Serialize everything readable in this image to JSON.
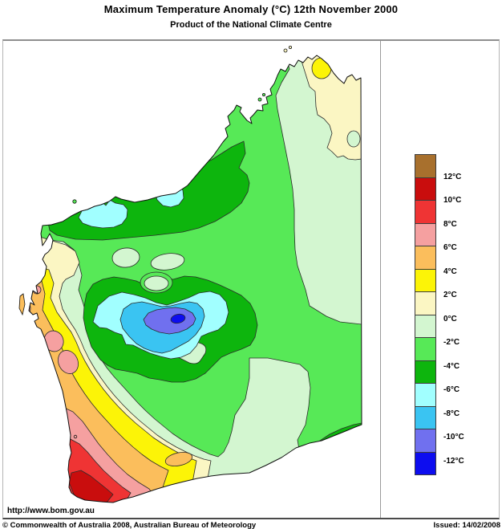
{
  "page": {
    "title": "Maximum Temperature Anomaly (°C)  12th November 2000",
    "subtitle": "Product of the National Climate Centre"
  },
  "footer": {
    "url": "http://www.bom.gov.au",
    "copyright": "© Commonwealth of Australia 2008, Australian Bureau of Meteorology",
    "issued": "Issued: 14/02/2008"
  },
  "palette": {
    "brown": "#A8702D",
    "red_dark": "#C90D0D",
    "red": "#EF3434",
    "pink": "#F5A0A0",
    "orange": "#FBBE5C",
    "yellow": "#FCF407",
    "cream": "#FBF6C3",
    "green_pale": "#D3F6D0",
    "green_mid": "#57E957",
    "green_dark": "#0DB50D",
    "cyan_light": "#A1FFFF",
    "cyan": "#3AC4F2",
    "periwinkle": "#7070EF",
    "blue": "#0D0DEF"
  },
  "legend": {
    "unit": "°C",
    "items": [
      {
        "key": "brown",
        "label": "12°C"
      },
      {
        "key": "red_dark",
        "label": "10°C"
      },
      {
        "key": "red",
        "label": "8°C"
      },
      {
        "key": "pink",
        "label": "6°C"
      },
      {
        "key": "orange",
        "label": "4°C"
      },
      {
        "key": "yellow",
        "label": "2°C"
      },
      {
        "key": "cream",
        "label": "0°C"
      },
      {
        "key": "green_pale",
        "label": "-2°C"
      },
      {
        "key": "green_mid",
        "label": "-4°C"
      },
      {
        "key": "green_dark",
        "label": "-6°C"
      },
      {
        "key": "cyan_light",
        "label": "-8°C"
      },
      {
        "key": "cyan",
        "label": "-10°C"
      },
      {
        "key": "periwinkle",
        "label": "-12°C"
      },
      {
        "key": "blue",
        "label": null
      }
    ]
  }
}
